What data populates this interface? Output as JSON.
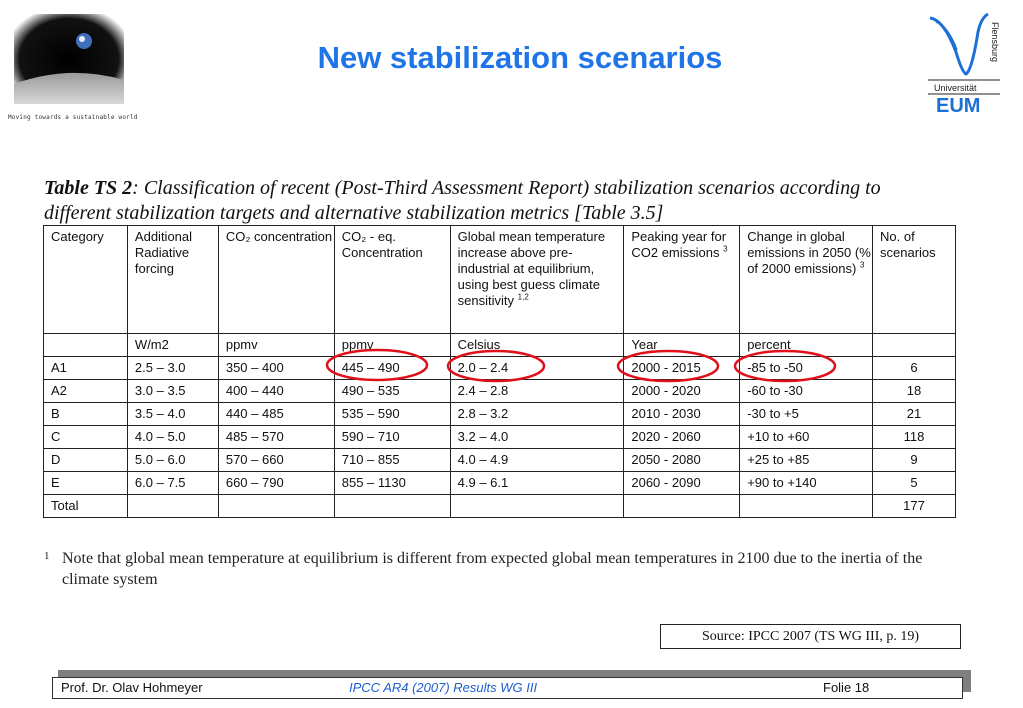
{
  "header": {
    "title": "New stabilization scenarios",
    "tagline": "Moving towards a sustainable world",
    "university_logo": {
      "vertical_text": "Flensburg",
      "universitat": "Universität",
      "abbrev": "EUM"
    }
  },
  "table": {
    "caption_bold": "Table TS 2",
    "caption_rest": ":  Classification of recent (Post-Third Assessment Report) stabilization scenarios according to different stabilization targets and alternative stabilization metrics [Table 3.5]",
    "headers": {
      "category": "Category",
      "forcing": "Additional Radiative forcing",
      "co2": "CO₂ concentration",
      "co2eq": "CO₂ - eq. Concentration",
      "temp": "Global mean temperature increase above pre-industrial at equilibrium, using best guess climate sensitivity",
      "temp_sup": "1,2",
      "peak": "Peaking year for CO2 emissions",
      "peak_sup": "3",
      "change": "Change in global emissions in 2050 (% of 2000 emissions)",
      "change_sup": "3",
      "count": "No. of scenarios"
    },
    "units": [
      "",
      "W/m2",
      "ppmv",
      "ppmv",
      "Celsius",
      "Year",
      "percent",
      ""
    ],
    "rows": [
      [
        "A1",
        "2.5 – 3.0",
        "350 – 400",
        "445 – 490",
        "2.0 – 2.4",
        "2000 - 2015",
        "-85 to -50",
        "6"
      ],
      [
        "A2",
        "3.0 – 3.5",
        "400 – 440",
        "490 – 535",
        "2.4 – 2.8",
        "2000 - 2020",
        "-60 to -30",
        "18"
      ],
      [
        "B",
        "3.5 – 4.0",
        "440 – 485",
        "535 – 590",
        "2.8 – 3.2",
        "2010 - 2030",
        "-30 to +5",
        "21"
      ],
      [
        "C",
        "4.0 – 5.0",
        "485 – 570",
        "590 – 710",
        "3.2 – 4.0",
        "2020 - 2060",
        "+10 to +60",
        "118"
      ],
      [
        "D",
        "5.0 – 6.0",
        "570 – 660",
        "710 – 855",
        "4.0 – 4.9",
        "2050 - 2080",
        "+25 to +85",
        "9"
      ],
      [
        "E",
        "6.0 – 7.5",
        "660 – 790",
        "855 – 1130",
        "4.9 – 6.1",
        "2060 - 2090",
        "+90 to +140",
        "5"
      ]
    ],
    "total": {
      "label": "Total",
      "count": "177"
    }
  },
  "footnote": {
    "mark": "1",
    "text": "Note that global mean temperature at equilibrium is different from expected global mean temperatures in 2100 due to the inertia of the climate system"
  },
  "source": "Source: IPCC 2007 (TS WG III, p. 19)",
  "footer": {
    "author": "Prof. Dr. Olav Hohmeyer",
    "center": "IPCC AR4 (2007) Results WG III",
    "folie": "Folie 18"
  },
  "colors": {
    "title": "#1f74e8",
    "highlight_circle": "#e0101a",
    "footer_link": "#1f5fd0"
  }
}
